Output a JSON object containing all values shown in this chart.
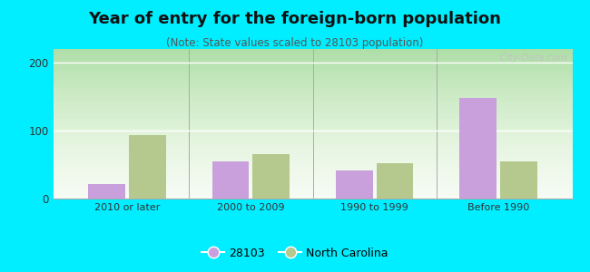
{
  "title": "Year of entry for the foreign-born population",
  "subtitle": "(Note: State values scaled to 28103 population)",
  "categories": [
    "2010 or later",
    "2000 to 2009",
    "1990 to 1999",
    "Before 1990"
  ],
  "values_28103": [
    22,
    55,
    42,
    148
  ],
  "values_nc": [
    93,
    65,
    52,
    55
  ],
  "color_28103": "#c9a0dc",
  "color_nc": "#b5c98e",
  "background_outer": "#00eeff",
  "ylim": [
    0,
    220
  ],
  "yticks": [
    0,
    100,
    200
  ],
  "legend_labels": [
    "28103",
    "North Carolina"
  ],
  "title_fontsize": 13,
  "subtitle_fontsize": 8.5,
  "watermark": "  City-Data.com",
  "bar_width": 0.3,
  "bar_gap": 0.03
}
